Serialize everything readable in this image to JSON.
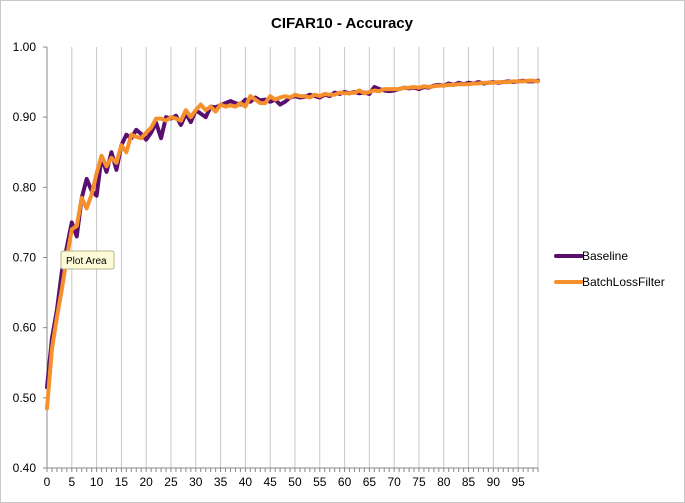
{
  "chart_data": {
    "type": "line",
    "title": "CIFAR10 - Accuracy",
    "xlabel": "",
    "ylabel": "",
    "xlim": [
      0,
      99
    ],
    "ylim": [
      0.4,
      1.0
    ],
    "x_ticks": [
      0,
      5,
      10,
      15,
      20,
      25,
      30,
      35,
      40,
      45,
      50,
      55,
      60,
      65,
      70,
      75,
      80,
      85,
      90,
      95
    ],
    "y_ticks": [
      "0.40",
      "0.50",
      "0.60",
      "0.70",
      "0.80",
      "0.90",
      "1.00"
    ],
    "grid": "vertical",
    "legend_position": "right",
    "tooltip": "Plot Area",
    "series": [
      {
        "name": "Baseline",
        "color": "#5a0f6e",
        "x": [
          0,
          1,
          2,
          3,
          4,
          5,
          6,
          7,
          8,
          9,
          10,
          11,
          12,
          13,
          14,
          15,
          16,
          17,
          18,
          19,
          20,
          21,
          22,
          23,
          24,
          25,
          26,
          27,
          28,
          29,
          30,
          31,
          32,
          33,
          34,
          35,
          36,
          37,
          38,
          39,
          40,
          41,
          42,
          43,
          44,
          45,
          46,
          47,
          48,
          49,
          50,
          51,
          52,
          53,
          54,
          55,
          56,
          57,
          58,
          59,
          60,
          61,
          62,
          63,
          64,
          65,
          66,
          67,
          68,
          69,
          70,
          71,
          72,
          73,
          74,
          75,
          76,
          77,
          78,
          79,
          80,
          81,
          82,
          83,
          84,
          85,
          86,
          87,
          88,
          89,
          90,
          91,
          92,
          93,
          94,
          95,
          96,
          97,
          98,
          99
        ],
        "values": [
          0.515,
          0.585,
          0.625,
          0.68,
          0.715,
          0.75,
          0.73,
          0.785,
          0.812,
          0.795,
          0.788,
          0.843,
          0.822,
          0.85,
          0.825,
          0.86,
          0.875,
          0.87,
          0.882,
          0.876,
          0.868,
          0.878,
          0.892,
          0.87,
          0.9,
          0.898,
          0.902,
          0.889,
          0.905,
          0.893,
          0.91,
          0.905,
          0.9,
          0.915,
          0.914,
          0.917,
          0.92,
          0.923,
          0.92,
          0.918,
          0.925,
          0.922,
          0.928,
          0.924,
          0.925,
          0.922,
          0.925,
          0.918,
          0.922,
          0.928,
          0.93,
          0.928,
          0.929,
          0.932,
          0.93,
          0.928,
          0.932,
          0.93,
          0.935,
          0.933,
          0.936,
          0.934,
          0.936,
          0.934,
          0.935,
          0.933,
          0.943,
          0.94,
          0.938,
          0.937,
          0.938,
          0.94,
          0.942,
          0.941,
          0.942,
          0.94,
          0.943,
          0.942,
          0.945,
          0.946,
          0.945,
          0.948,
          0.946,
          0.949,
          0.947,
          0.949,
          0.948,
          0.95,
          0.948,
          0.949,
          0.95,
          0.949,
          0.95,
          0.951,
          0.95,
          0.951,
          0.952,
          0.951,
          0.951,
          0.952
        ]
      },
      {
        "name": "BatchLossFilter",
        "color": "#f5902d",
        "x": [
          0,
          1,
          2,
          3,
          4,
          5,
          6,
          7,
          8,
          9,
          10,
          11,
          12,
          13,
          14,
          15,
          16,
          17,
          18,
          19,
          20,
          21,
          22,
          23,
          24,
          25,
          26,
          27,
          28,
          29,
          30,
          31,
          32,
          33,
          34,
          35,
          36,
          37,
          38,
          39,
          40,
          41,
          42,
          43,
          44,
          45,
          46,
          47,
          48,
          49,
          50,
          51,
          52,
          53,
          54,
          55,
          56,
          57,
          58,
          59,
          60,
          61,
          62,
          63,
          64,
          65,
          66,
          67,
          68,
          69,
          70,
          71,
          72,
          73,
          74,
          75,
          76,
          77,
          78,
          79,
          80,
          81,
          82,
          83,
          84,
          85,
          86,
          87,
          88,
          89,
          90,
          91,
          92,
          93,
          94,
          95,
          96,
          97,
          98,
          99
        ],
        "values": [
          0.485,
          0.57,
          0.615,
          0.655,
          0.7,
          0.74,
          0.745,
          0.785,
          0.77,
          0.79,
          0.82,
          0.845,
          0.83,
          0.842,
          0.835,
          0.86,
          0.85,
          0.875,
          0.872,
          0.87,
          0.878,
          0.885,
          0.898,
          0.898,
          0.895,
          0.9,
          0.898,
          0.895,
          0.91,
          0.9,
          0.91,
          0.918,
          0.91,
          0.915,
          0.908,
          0.918,
          0.915,
          0.917,
          0.915,
          0.92,
          0.915,
          0.93,
          0.925,
          0.92,
          0.92,
          0.93,
          0.925,
          0.928,
          0.93,
          0.928,
          0.932,
          0.93,
          0.93,
          0.928,
          0.932,
          0.93,
          0.933,
          0.932,
          0.932,
          0.935,
          0.934,
          0.934,
          0.935,
          0.938,
          0.934,
          0.936,
          0.938,
          0.937,
          0.94,
          0.94,
          0.94,
          0.94,
          0.942,
          0.942,
          0.943,
          0.942,
          0.944,
          0.943,
          0.944,
          0.945,
          0.945,
          0.946,
          0.946,
          0.947,
          0.947,
          0.947,
          0.948,
          0.948,
          0.949,
          0.949,
          0.949,
          0.95,
          0.95,
          0.95,
          0.951,
          0.951,
          0.951,
          0.952,
          0.952,
          0.951
        ]
      }
    ]
  }
}
